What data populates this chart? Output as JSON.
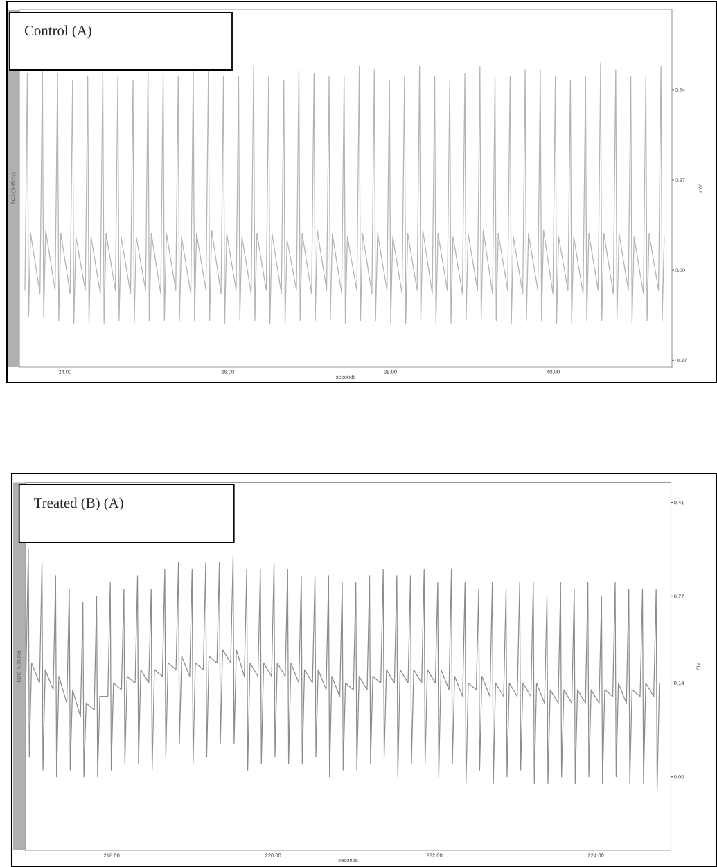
{
  "chart_data": [
    {
      "type": "line",
      "title": "Control (A)",
      "xlabel": "seconds",
      "ylabel": "mV",
      "annotations": [
        "ECG (5-35 Hz)"
      ],
      "xlim": [
        33.44,
        41.46
      ],
      "ylim": [
        -0.29,
        0.78
      ],
      "xticks": [
        {
          "value": 34,
          "label": "34.00"
        },
        {
          "value": 36,
          "label": "36.00"
        },
        {
          "value": 38,
          "label": "38.00"
        },
        {
          "value": 40,
          "label": "40.00"
        }
      ],
      "yticks": [
        -0.27,
        {
          "value": 0,
          "label": "0.00"
        },
        0.27,
        0.54
      ],
      "x": [
        33.508,
        33.538,
        33.553,
        33.578,
        33.693,
        33.723,
        33.738,
        33.763,
        33.879,
        33.909,
        33.924,
        33.949,
        34.064,
        34.094,
        34.109,
        34.134,
        34.25,
        34.28,
        34.295,
        34.32,
        34.435,
        34.465,
        34.48,
        34.505,
        34.62,
        34.65,
        34.665,
        34.69,
        34.806,
        34.836,
        34.851,
        34.876,
        34.991,
        35.021,
        35.036,
        35.061,
        35.177,
        35.207,
        35.222,
        35.247,
        35.362,
        35.392,
        35.407,
        35.432,
        35.547,
        35.577,
        35.592,
        35.617,
        35.733,
        35.763,
        35.778,
        35.803,
        35.918,
        35.948,
        35.963,
        35.988,
        36.104,
        36.134,
        36.149,
        36.174,
        36.289,
        36.319,
        36.334,
        36.359,
        36.474,
        36.504,
        36.519,
        36.544,
        36.66,
        36.69,
        36.705,
        36.73,
        36.845,
        36.875,
        36.89,
        36.915,
        37.031,
        37.061,
        37.076,
        37.101,
        37.216,
        37.246,
        37.261,
        37.286,
        37.401,
        37.431,
        37.446,
        37.471,
        37.587,
        37.617,
        37.632,
        37.657,
        37.772,
        37.802,
        37.817,
        37.842,
        37.958,
        37.988,
        38.003,
        38.028,
        38.143,
        38.173,
        38.188,
        38.213,
        38.328,
        38.358,
        38.373,
        38.398,
        38.514,
        38.544,
        38.559,
        38.584,
        38.699,
        38.729,
        38.744,
        38.769,
        38.885,
        38.915,
        38.93,
        38.955,
        39.07,
        39.1,
        39.115,
        39.14,
        39.255,
        39.285,
        39.3,
        39.325,
        39.441,
        39.471,
        39.486,
        39.511,
        39.626,
        39.656,
        39.671,
        39.696,
        39.812,
        39.842,
        39.857,
        39.882,
        39.997,
        40.027,
        40.042,
        40.067,
        40.182,
        40.212,
        40.227,
        40.252,
        40.368,
        40.398,
        40.413,
        40.438,
        40.553,
        40.583,
        40.598,
        40.623,
        40.739,
        40.769,
        40.784,
        40.809,
        40.924,
        40.954,
        40.969,
        40.994,
        41.109,
        41.139,
        41.154,
        41.179,
        41.295,
        41.325,
        41.34,
        41.365
      ],
      "series": [
        {
          "color": "#b4b4b4",
          "values": [
            -0.06,
            0.59,
            -0.14,
            0.11,
            -0.07,
            0.6,
            -0.14,
            0.12,
            -0.06,
            0.59,
            -0.15,
            0.11,
            -0.07,
            0.57,
            -0.16,
            0.1,
            -0.06,
            0.58,
            -0.16,
            0.1,
            -0.07,
            0.6,
            -0.16,
            0.11,
            -0.06,
            0.58,
            -0.15,
            0.1,
            -0.07,
            0.57,
            -0.16,
            0.1,
            -0.06,
            0.6,
            -0.15,
            0.11,
            -0.07,
            0.59,
            -0.15,
            0.11,
            -0.06,
            0.58,
            -0.15,
            0.1,
            -0.07,
            0.6,
            -0.15,
            0.11,
            -0.06,
            0.6,
            -0.15,
            0.12,
            -0.07,
            0.58,
            -0.16,
            0.11,
            -0.06,
            0.58,
            -0.15,
            0.1,
            -0.07,
            0.61,
            -0.15,
            0.11,
            -0.06,
            0.58,
            -0.16,
            0.11,
            -0.07,
            0.57,
            -0.16,
            0.09,
            -0.06,
            0.6,
            -0.15,
            0.11,
            -0.07,
            0.59,
            -0.15,
            0.12,
            -0.06,
            0.58,
            -0.15,
            0.11,
            -0.07,
            0.58,
            -0.16,
            0.1,
            -0.06,
            0.61,
            -0.15,
            0.11,
            -0.07,
            0.6,
            -0.15,
            0.11,
            -0.06,
            0.57,
            -0.16,
            0.1,
            -0.07,
            0.58,
            -0.16,
            0.11,
            -0.06,
            0.61,
            -0.15,
            0.12,
            -0.07,
            0.58,
            -0.16,
            0.11,
            -0.06,
            0.57,
            -0.16,
            0.1,
            -0.07,
            0.59,
            -0.15,
            0.11,
            -0.06,
            0.61,
            -0.15,
            0.12,
            -0.07,
            0.58,
            -0.15,
            0.11,
            -0.06,
            0.58,
            -0.16,
            0.1,
            -0.07,
            0.6,
            -0.15,
            0.11,
            -0.06,
            0.6,
            -0.15,
            0.12,
            -0.07,
            0.58,
            -0.16,
            0.1,
            -0.06,
            0.57,
            -0.16,
            0.1,
            -0.07,
            0.58,
            -0.15,
            0.11,
            -0.06,
            0.62,
            -0.15,
            0.11,
            -0.07,
            0.6,
            -0.15,
            0.11,
            -0.06,
            0.58,
            -0.16,
            0.1,
            -0.07,
            0.58,
            -0.15,
            0.11,
            -0.06,
            0.61,
            -0.15,
            0.1
          ]
        }
      ]
    },
    {
      "type": "line",
      "title": "Treated (B) (A)",
      "xlabel": "seconds",
      "ylabel": "mV",
      "annotations": [
        "ECG (5-35 Hz)"
      ],
      "xlim": [
        216.93,
        224.93
      ],
      "ylim": [
        -0.11,
        0.44
      ],
      "xticks": [
        {
          "value": 218,
          "label": "218.00"
        },
        {
          "value": 220,
          "label": "220.00"
        },
        {
          "value": 222,
          "label": "222.00"
        },
        {
          "value": 224,
          "label": "224.00"
        }
      ],
      "yticks": [
        {
          "value": 0,
          "label": "0.00"
        },
        0.14,
        0.27,
        0.41
      ],
      "x": [
        216.938,
        216.968,
        216.98,
        217.008,
        217.107,
        217.137,
        217.149,
        217.177,
        217.276,
        217.306,
        217.318,
        217.346,
        217.445,
        217.475,
        217.487,
        217.515,
        217.614,
        217.644,
        217.656,
        217.684,
        217.784,
        217.814,
        217.826,
        217.854,
        217.953,
        217.983,
        217.995,
        218.023,
        218.122,
        218.152,
        218.164,
        218.192,
        218.291,
        218.321,
        218.333,
        218.361,
        218.46,
        218.49,
        218.502,
        218.53,
        218.629,
        218.659,
        218.671,
        218.699,
        218.798,
        218.828,
        218.84,
        218.868,
        218.967,
        218.997,
        219.009,
        219.037,
        219.136,
        219.166,
        219.178,
        219.206,
        219.305,
        219.335,
        219.347,
        219.375,
        219.475,
        219.505,
        219.517,
        219.545,
        219.644,
        219.674,
        219.686,
        219.714,
        219.813,
        219.843,
        219.855,
        219.883,
        219.982,
        220.012,
        220.024,
        220.052,
        220.151,
        220.181,
        220.193,
        220.221,
        220.32,
        220.35,
        220.362,
        220.39,
        220.489,
        220.519,
        220.531,
        220.559,
        220.658,
        220.688,
        220.7,
        220.728,
        220.827,
        220.857,
        220.869,
        220.897,
        220.996,
        221.026,
        221.038,
        221.066,
        221.166,
        221.196,
        221.208,
        221.236,
        221.335,
        221.365,
        221.377,
        221.405,
        221.504,
        221.534,
        221.546,
        221.574,
        221.673,
        221.703,
        221.715,
        221.743,
        221.842,
        221.872,
        221.884,
        221.912,
        222.011,
        222.041,
        222.053,
        222.081,
        222.18,
        222.21,
        222.222,
        222.25,
        222.349,
        222.379,
        222.391,
        222.419,
        222.518,
        222.548,
        222.56,
        222.588,
        222.687,
        222.717,
        222.729,
        222.757,
        222.857,
        222.887,
        222.899,
        222.927,
        223.026,
        223.056,
        223.068,
        223.096,
        223.195,
        223.225,
        223.237,
        223.265,
        223.364,
        223.394,
        223.406,
        223.434,
        223.533,
        223.563,
        223.575,
        223.603,
        223.702,
        223.732,
        223.744,
        223.772,
        223.871,
        223.901,
        223.913,
        223.941,
        224.04,
        224.07,
        224.082,
        224.11,
        224.209,
        224.239,
        224.251,
        224.279,
        224.378,
        224.408,
        224.42,
        224.448,
        224.548,
        224.578,
        224.59,
        224.618,
        224.717,
        224.747,
        224.759,
        224.787
      ],
      "series": [
        {
          "color": "#8c8c8c",
          "values": [
            0.15,
            0.34,
            0.03,
            0.17,
            0.14,
            0.32,
            0.01,
            0.16,
            0.13,
            0.3,
            0.0,
            0.15,
            0.11,
            0.28,
            0.01,
            0.13,
            0.09,
            0.26,
            0.0,
            0.11,
            0.1,
            0.27,
            0.0,
            0.12,
            0.12,
            0.29,
            0.01,
            0.14,
            0.13,
            0.28,
            0.02,
            0.15,
            0.14,
            0.3,
            0.02,
            0.16,
            0.14,
            0.28,
            0.01,
            0.16,
            0.15,
            0.31,
            0.03,
            0.17,
            0.16,
            0.32,
            0.05,
            0.18,
            0.15,
            0.31,
            0.02,
            0.17,
            0.16,
            0.32,
            0.03,
            0.18,
            0.17,
            0.32,
            0.05,
            0.19,
            0.17,
            0.33,
            0.05,
            0.19,
            0.15,
            0.31,
            0.01,
            0.17,
            0.15,
            0.31,
            0.02,
            0.17,
            0.15,
            0.32,
            0.03,
            0.17,
            0.15,
            0.31,
            0.02,
            0.17,
            0.14,
            0.3,
            0.02,
            0.16,
            0.14,
            0.3,
            0.03,
            0.16,
            0.13,
            0.3,
            0.0,
            0.15,
            0.12,
            0.29,
            0.01,
            0.14,
            0.13,
            0.29,
            0.01,
            0.15,
            0.13,
            0.3,
            0.02,
            0.15,
            0.14,
            0.31,
            0.03,
            0.16,
            0.14,
            0.3,
            0.0,
            0.16,
            0.14,
            0.3,
            0.02,
            0.16,
            0.14,
            0.31,
            0.02,
            0.16,
            0.14,
            0.29,
            0.0,
            0.16,
            0.13,
            0.31,
            0.02,
            0.15,
            0.12,
            0.29,
            -0.01,
            0.14,
            0.13,
            0.28,
            0.01,
            0.15,
            0.12,
            0.29,
            -0.01,
            0.14,
            0.12,
            0.28,
            0.0,
            0.14,
            0.12,
            0.29,
            0.01,
            0.14,
            0.12,
            0.29,
            -0.01,
            0.14,
            0.11,
            0.27,
            -0.01,
            0.13,
            0.11,
            0.29,
            0.0,
            0.13,
            0.11,
            0.28,
            -0.01,
            0.13,
            0.11,
            0.29,
            0.0,
            0.13,
            0.11,
            0.27,
            -0.01,
            0.13,
            0.12,
            0.29,
            0.0,
            0.14,
            0.11,
            0.28,
            -0.01,
            0.13,
            0.12,
            0.28,
            -0.01,
            0.14,
            0.12,
            0.28,
            -0.02,
            0.14
          ]
        }
      ]
    }
  ]
}
